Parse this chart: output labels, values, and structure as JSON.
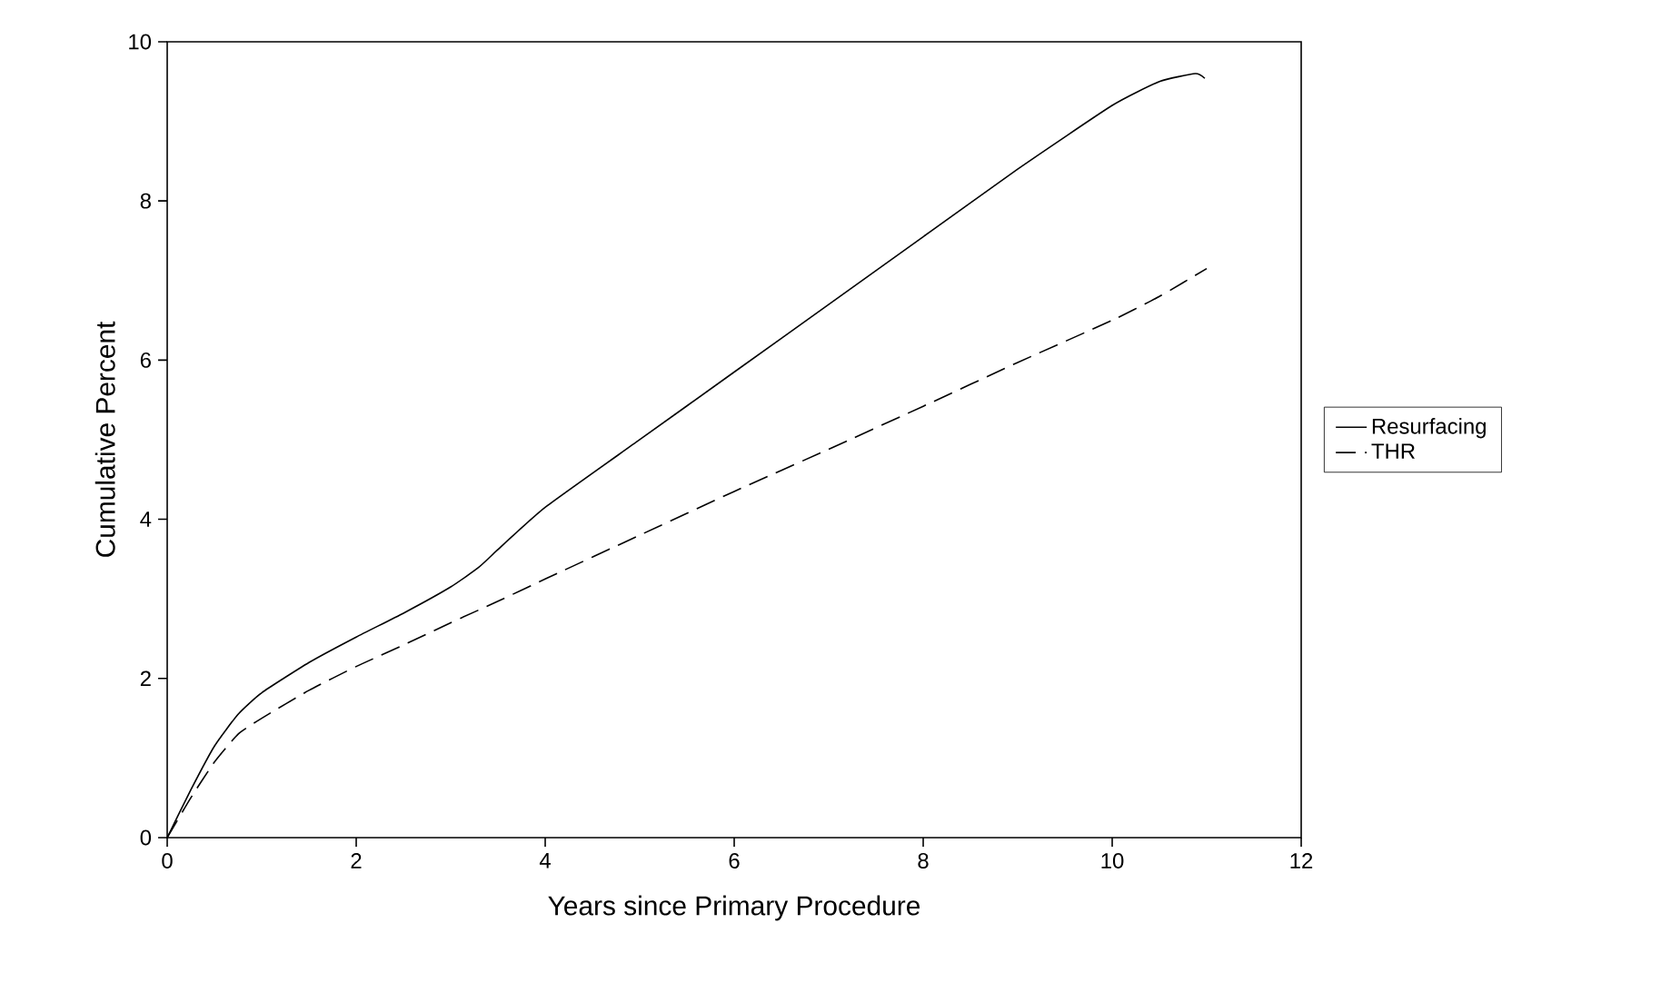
{
  "chart_data": {
    "type": "line",
    "xlabel": "Years since Primary Procedure",
    "ylabel": "Cumulative Percent",
    "xlim": [
      0,
      12
    ],
    "ylim": [
      0,
      10
    ],
    "xticks": [
      0,
      2,
      4,
      6,
      8,
      10,
      12
    ],
    "yticks": [
      0,
      2,
      4,
      6,
      8,
      10
    ],
    "grid": false,
    "legend": "right",
    "marker": "none",
    "series": [
      {
        "name": "Resurfacing",
        "color": "#000000",
        "line_style": "solid",
        "x": [
          0,
          0.25,
          0.5,
          0.75,
          1,
          1.5,
          2,
          2.5,
          3,
          3.3,
          3.5,
          4,
          5,
          6,
          7,
          8,
          9,
          10,
          10.5,
          10.88,
          10.98
        ],
        "values": [
          0,
          0.6,
          1.15,
          1.55,
          1.82,
          2.2,
          2.52,
          2.82,
          3.15,
          3.4,
          3.62,
          4.15,
          5.0,
          5.85,
          6.7,
          7.55,
          8.4,
          9.2,
          9.5,
          9.6,
          9.54
        ]
      },
      {
        "name": "THR",
        "color": "#000000",
        "line_style": "dashed",
        "x": [
          0,
          0.25,
          0.5,
          0.75,
          1,
          1.5,
          2,
          2.5,
          3,
          3.5,
          4,
          5,
          6,
          7,
          8,
          9,
          10,
          10.5,
          11
        ],
        "values": [
          0,
          0.5,
          0.95,
          1.3,
          1.5,
          1.85,
          2.15,
          2.42,
          2.7,
          2.97,
          3.25,
          3.8,
          4.35,
          4.88,
          5.42,
          5.97,
          6.5,
          6.8,
          7.15
        ]
      }
    ]
  }
}
